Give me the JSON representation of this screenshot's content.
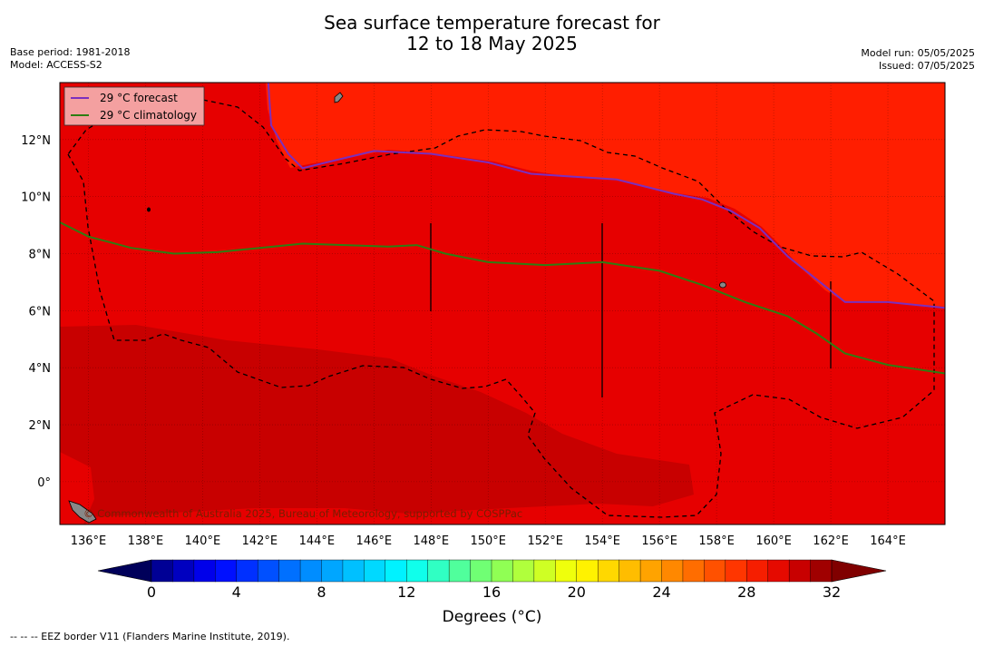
{
  "title_line1": "Sea surface temperature forecast for",
  "title_line2": "12 to 18 May 2025",
  "meta_left": {
    "base_period": "Base period: 1981-2018",
    "model": "Model: ACCESS-S2"
  },
  "meta_right": {
    "model_run": "Model run: 05/05/2025",
    "issued": "Issued: 07/05/2025"
  },
  "legend": {
    "forecast": "29 °C  forecast",
    "climatology": "29 °C  climatology",
    "forecast_color": "#7b2fbe",
    "climatology_color": "#2e7d12"
  },
  "copyright": "© Commonwealth of Australia 2025, Bureau of Meteorology, supported by COSPPac",
  "colorbar": {
    "title": "Degrees (°C)",
    "ticks": [
      "0",
      "4",
      "8",
      "12",
      "16",
      "20",
      "24",
      "28",
      "32"
    ]
  },
  "footnote": "-- --  -- EEZ border V11 (Flanders Marine Institute, 2019).",
  "chart_data": {
    "type": "heatmap",
    "title": "Sea surface temperature forecast for 12 to 18 May 2025",
    "xlabel": "",
    "ylabel": "",
    "xlim": [
      135,
      166
    ],
    "ylim": [
      -1.5,
      14
    ],
    "x_ticks": [
      {
        "value": 136,
        "label": "136°E"
      },
      {
        "value": 138,
        "label": "138°E"
      },
      {
        "value": 140,
        "label": "140°E"
      },
      {
        "value": 142,
        "label": "142°E"
      },
      {
        "value": 144,
        "label": "144°E"
      },
      {
        "value": 146,
        "label": "146°E"
      },
      {
        "value": 148,
        "label": "148°E"
      },
      {
        "value": 150,
        "label": "150°E"
      },
      {
        "value": 152,
        "label": "152°E"
      },
      {
        "value": 154,
        "label": "154°E"
      },
      {
        "value": 156,
        "label": "156°E"
      },
      {
        "value": 158,
        "label": "158°E"
      },
      {
        "value": 160,
        "label": "160°E"
      },
      {
        "value": 162,
        "label": "162°E"
      },
      {
        "value": 164,
        "label": "164°E"
      }
    ],
    "y_ticks": [
      {
        "value": 0,
        "label": "0°"
      },
      {
        "value": 2,
        "label": "2°N"
      },
      {
        "value": 4,
        "label": "4°N"
      },
      {
        "value": 6,
        "label": "6°N"
      },
      {
        "value": 8,
        "label": "8°N"
      },
      {
        "value": 10,
        "label": "10°N"
      },
      {
        "value": 12,
        "label": "12°N"
      }
    ],
    "grid": true,
    "legend_position": "top-left",
    "colorbar_range": [
      0,
      32
    ],
    "colorbar_step": 1,
    "regions": [
      {
        "temp_range": [
          28,
          29
        ],
        "color": "#ff1e00"
      },
      {
        "temp_range": [
          29,
          30
        ],
        "color": "#e60000"
      },
      {
        "temp_range": [
          30,
          31
        ],
        "color": "#c80000"
      }
    ],
    "series": [
      {
        "name": "29 °C  forecast",
        "points": [
          [
            142.3,
            14
          ],
          [
            142.4,
            12.5
          ],
          [
            143,
            11.5
          ],
          [
            143.5,
            11
          ],
          [
            146,
            11.6
          ],
          [
            148,
            11.5
          ],
          [
            150,
            11.2
          ],
          [
            151.5,
            10.8
          ],
          [
            153,
            10.7
          ],
          [
            154.5,
            10.6
          ],
          [
            156.5,
            10.1
          ],
          [
            157.5,
            9.9
          ],
          [
            158.5,
            9.5
          ],
          [
            159.5,
            8.9
          ],
          [
            160.5,
            7.9
          ],
          [
            161.5,
            7.1
          ],
          [
            162.5,
            6.3
          ],
          [
            164,
            6.3
          ],
          [
            166,
            6.1
          ]
        ]
      },
      {
        "name": "29 °C  climatology",
        "points": [
          [
            135,
            9.1
          ],
          [
            136,
            8.6
          ],
          [
            137.5,
            8.2
          ],
          [
            139,
            8.0
          ],
          [
            140.5,
            8.05
          ],
          [
            142,
            8.2
          ],
          [
            143.5,
            8.35
          ],
          [
            145,
            8.3
          ],
          [
            146.5,
            8.25
          ],
          [
            147.5,
            8.3
          ],
          [
            148.5,
            8.0
          ],
          [
            150,
            7.7
          ],
          [
            152,
            7.6
          ],
          [
            154,
            7.7
          ],
          [
            156,
            7.4
          ],
          [
            157.5,
            6.9
          ],
          [
            159,
            6.3
          ],
          [
            160.5,
            5.8
          ],
          [
            161.5,
            5.2
          ],
          [
            162.5,
            4.5
          ],
          [
            164,
            4.1
          ],
          [
            166,
            3.8
          ]
        ]
      }
    ]
  }
}
